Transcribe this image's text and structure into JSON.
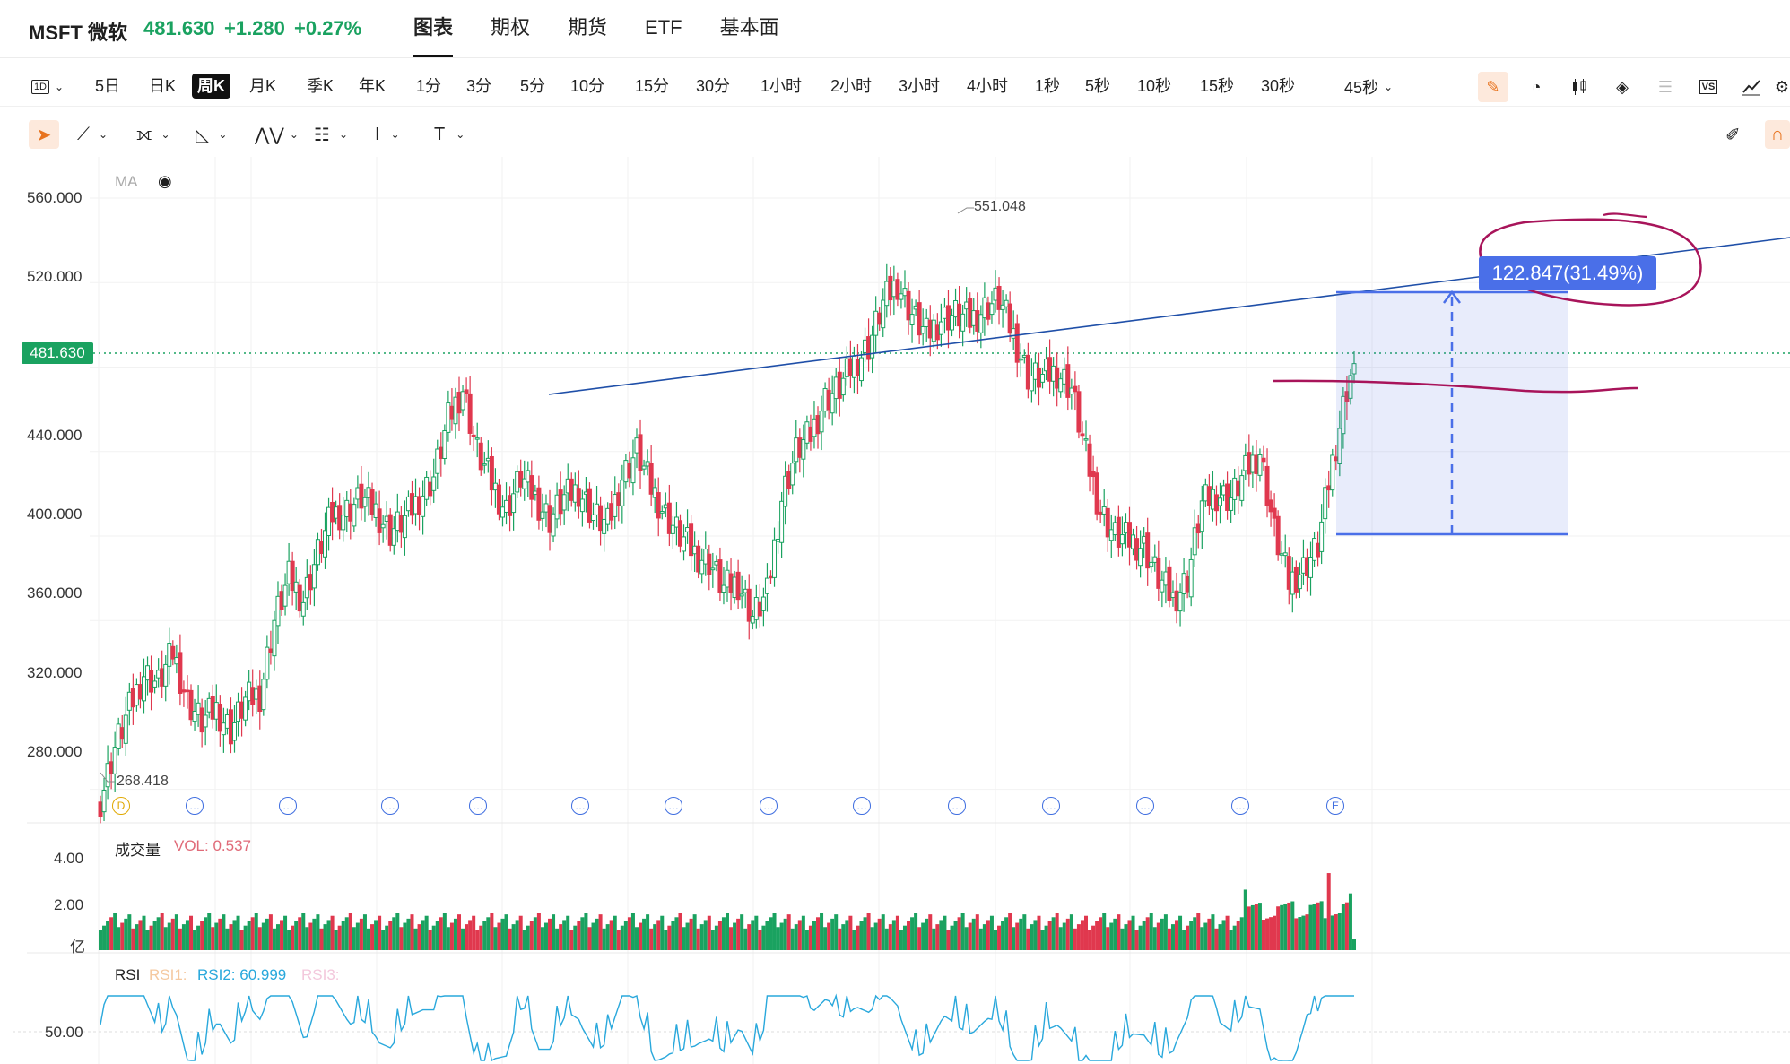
{
  "header": {
    "symbol": "MSFT 微软",
    "last": "481.630",
    "change": "+1.280",
    "change_pct": "+0.27%",
    "tabs": [
      "图表",
      "期权",
      "期货",
      "ETF",
      "基本面"
    ],
    "active_tab": "图表"
  },
  "toolbar": {
    "interval_select": "1D",
    "timeframes": [
      "5日",
      "日K",
      "周K",
      "月K",
      "季K",
      "年K",
      "1分",
      "3分",
      "5分",
      "10分",
      "15分",
      "30分",
      "1小时",
      "2小时",
      "3小时",
      "4小时",
      "1秒",
      "5秒",
      "10秒",
      "15秒",
      "30秒"
    ],
    "active_timeframe": "周K",
    "more_interval": "45秒",
    "right_icons": [
      "pencil-icon",
      "gauge-icon",
      "candlestick-icon",
      "layers-icon",
      "list-icon",
      "vs-icon",
      "line-chart-icon",
      "settings-icon"
    ]
  },
  "drawing_tools": [
    "cursor-icon",
    "trendline-icon",
    "fib-icon",
    "triangle-icon",
    "pattern-icon",
    "text-lines-icon",
    "cursor-text-icon",
    "text-icon"
  ],
  "main_chart": {
    "ma_label": "MA",
    "y_ticks": [
      "560.000",
      "520.000",
      "481.630",
      "440.000",
      "400.000",
      "360.000",
      "320.000",
      "280.000"
    ],
    "current_price_tag": "481.630",
    "high_label": "551.048",
    "low_label": "268.418",
    "measure_label": "122.847(31.49%)",
    "event_markers": [
      "D",
      "…",
      "…",
      "…",
      "…",
      "…",
      "…",
      "…",
      "…",
      "…",
      "…",
      "…",
      "…",
      "E"
    ]
  },
  "volume_panel": {
    "title": "成交量",
    "vol_text": "VOL: 0.537",
    "y_ticks": [
      "4.00",
      "2.00"
    ],
    "unit": "亿"
  },
  "rsi_panel": {
    "title": "RSI",
    "rsi1": "RSI1:",
    "rsi2": "RSI2: 60.999",
    "rsi3": "RSI3:",
    "y_ticks": [
      "50.00"
    ]
  },
  "colors": {
    "up": "#1aa260",
    "down": "#e0384e",
    "trendline": "#1f4fa8",
    "measure": "#4a6fe8",
    "annotation": "#a8145a",
    "rsi": "#29a8dc"
  }
}
